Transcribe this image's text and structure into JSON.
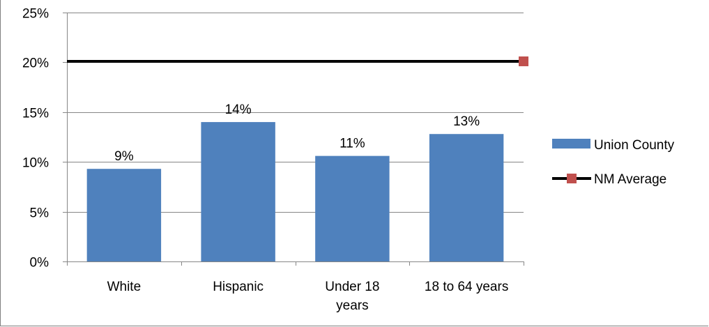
{
  "chart_data": {
    "type": "bar",
    "categories": [
      "White",
      "Hispanic",
      "Under 18 years",
      "18 to 64 years"
    ],
    "category_label_lines": [
      [
        "White"
      ],
      [
        "Hispanic"
      ],
      [
        "Under 18",
        "years"
      ],
      [
        "18 to 64 years"
      ]
    ],
    "series": [
      {
        "name": "Union County",
        "type": "bar",
        "values": [
          9.3,
          14.0,
          10.6,
          12.8
        ],
        "labels": [
          "9%",
          "14%",
          "11%",
          "13%"
        ],
        "color": "#4f81bd"
      },
      {
        "name": "NM Average",
        "type": "line",
        "value": 20.1,
        "color": "#000000",
        "marker_color": "#c0504d"
      }
    ],
    "yticks": [
      "0%",
      "5%",
      "10%",
      "15%",
      "20%",
      "25%"
    ],
    "ylim": [
      0,
      25
    ],
    "grid": true,
    "legend_position": "right"
  }
}
